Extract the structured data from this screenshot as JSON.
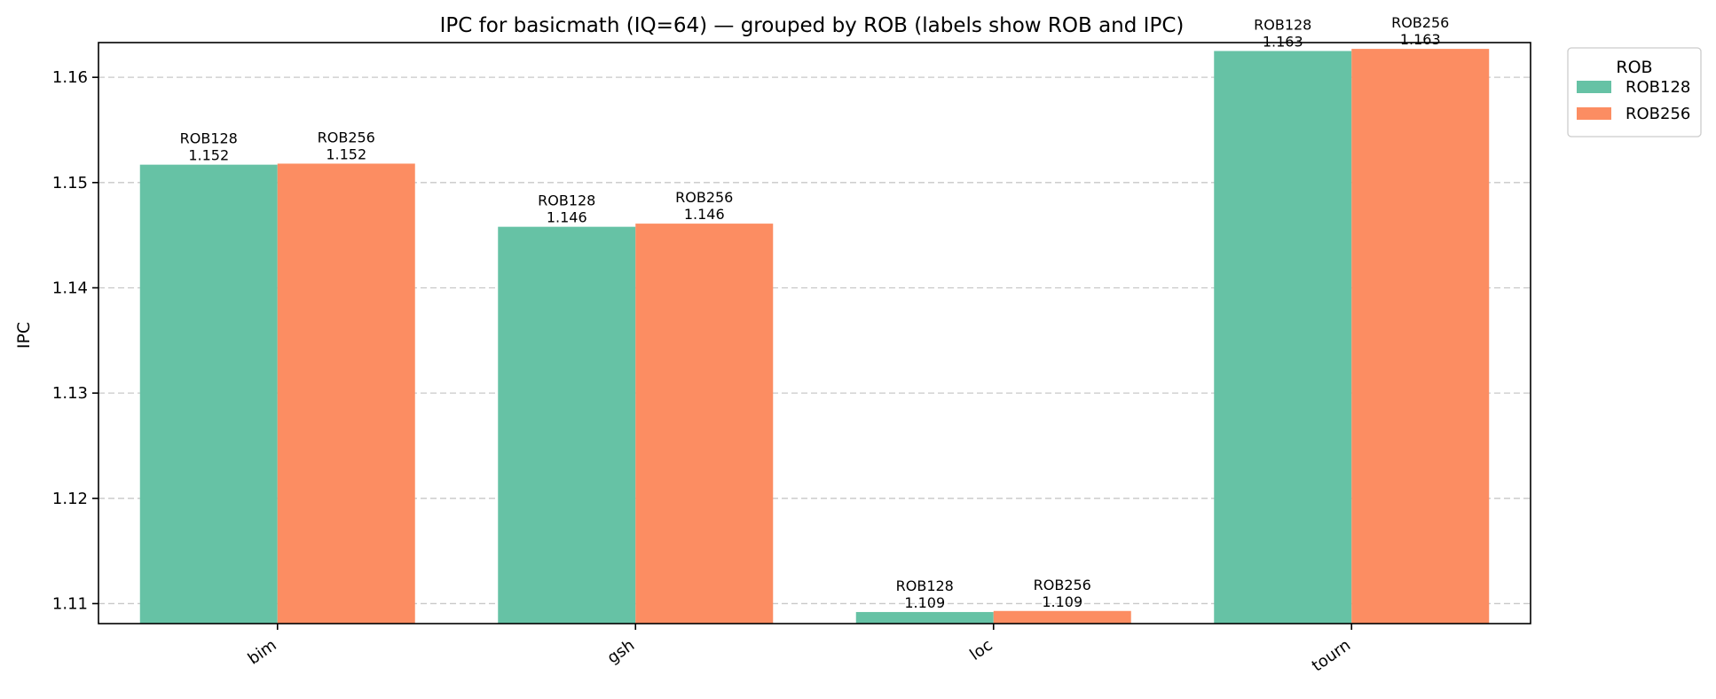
{
  "chart_data": {
    "type": "bar",
    "title": "IPC for basicmath (IQ=64) — grouped by ROB (labels show ROB and IPC)",
    "xlabel": "",
    "ylabel": "IPC",
    "categories": [
      "bim",
      "gsh",
      "loc",
      "tourn"
    ],
    "series": [
      {
        "name": "ROB128",
        "color": "#66c2a5",
        "values": [
          1.1517,
          1.1458,
          1.1092,
          1.1625
        ]
      },
      {
        "name": "ROB256",
        "color": "#fc8d62",
        "values": [
          1.1518,
          1.1461,
          1.1093,
          1.1627
        ]
      }
    ],
    "bar_labels": [
      [
        {
          "line1": "ROB128",
          "line2": "1.152"
        },
        {
          "line1": "ROB128",
          "line2": "1.146"
        },
        {
          "line1": "ROB128",
          "line2": "1.109"
        },
        {
          "line1": "ROB128",
          "line2": "1.163"
        }
      ],
      [
        {
          "line1": "ROB256",
          "line2": "1.152"
        },
        {
          "line1": "ROB256",
          "line2": "1.146"
        },
        {
          "line1": "ROB256",
          "line2": "1.109"
        },
        {
          "line1": "ROB256",
          "line2": "1.163"
        }
      ]
    ],
    "yticks": [
      "1.11",
      "1.12",
      "1.13",
      "1.14",
      "1.15",
      "1.16"
    ],
    "ylim": [
      1.1081,
      1.1633
    ],
    "grid": "y, dashed",
    "legend": {
      "title": "ROB",
      "placement": "outside top-right"
    }
  }
}
